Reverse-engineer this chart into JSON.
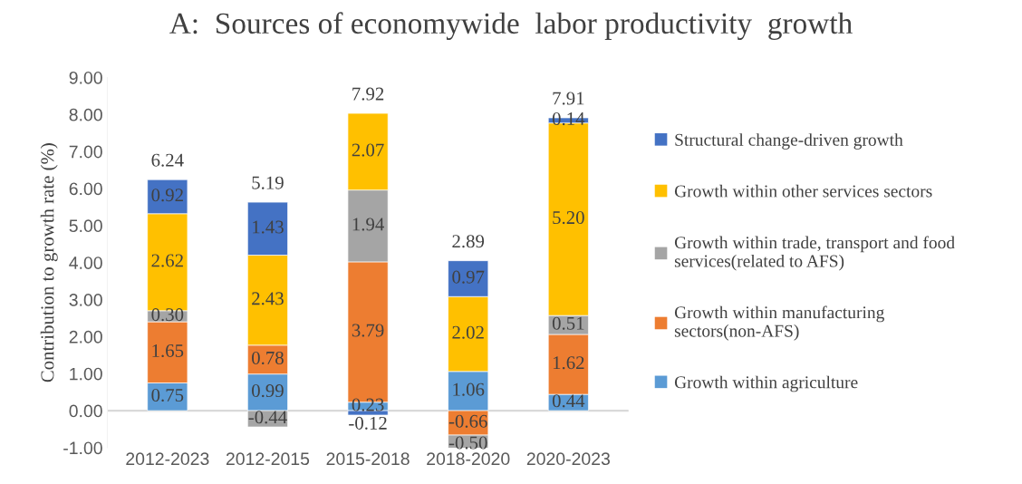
{
  "chart_data": {
    "type": "bar",
    "stacked": true,
    "title": "A:  Sources of economywide  labor productivity  growth",
    "ylabel": "Contribution to growth rate (%)",
    "categories": [
      "2012-2023",
      "2012-2015",
      "2015-2018",
      "2018-2020",
      "2020-2023"
    ],
    "series": [
      {
        "name": "Growth within agriculture",
        "color": "#5b9bd5",
        "values": [
          0.75,
          0.99,
          0.23,
          1.06,
          0.44
        ],
        "value_labels": [
          "0.75",
          "0.99",
          "0.23",
          "1.06",
          "0.44"
        ]
      },
      {
        "name": "Growth within manufacturing\nsectors(non-AFS)",
        "color": "#ed7d31",
        "values": [
          1.65,
          0.78,
          3.79,
          -0.66,
          1.62
        ],
        "value_labels": [
          "1.65",
          "0.78",
          "3.79",
          "-0.66",
          "1.62"
        ]
      },
      {
        "name": "Growth within trade, transport and food\nservices(related to AFS)",
        "color": "#a5a5a5",
        "values": [
          0.3,
          -0.44,
          1.94,
          -0.5,
          0.51
        ],
        "value_labels": [
          "0.30",
          "-0.44",
          "1.94",
          "-0.50",
          "0.51"
        ]
      },
      {
        "name": "Growth within other services sectors",
        "color": "#ffc000",
        "values": [
          2.62,
          2.43,
          2.07,
          2.02,
          5.2
        ],
        "value_labels": [
          "2.62",
          "2.43",
          "2.07",
          "2.02",
          "5.20"
        ]
      },
      {
        "name": "Structural change-driven growth",
        "color": "#4472c4",
        "values": [
          0.92,
          1.43,
          -0.12,
          0.97,
          0.14
        ],
        "value_labels": [
          "0.92",
          "1.43",
          "-0.12",
          "0.97",
          "0.14"
        ]
      }
    ],
    "totals": [
      "6.24",
      "5.19",
      "7.92",
      "2.89",
      "7.91"
    ],
    "legend": "right",
    "grid": false,
    "ylim": [
      -1,
      9
    ],
    "yticks": [
      {
        "value": -1,
        "label": "-1.00"
      },
      {
        "value": 0,
        "label": "0.00"
      },
      {
        "value": 1,
        "label": "1.00"
      },
      {
        "value": 2,
        "label": "2.00"
      },
      {
        "value": 3,
        "label": "3.00"
      },
      {
        "value": 4,
        "label": "4.00"
      },
      {
        "value": 5,
        "label": "5.00"
      },
      {
        "value": 6,
        "label": "6.00"
      },
      {
        "value": 7,
        "label": "7.00"
      },
      {
        "value": 8,
        "label": "8.00"
      },
      {
        "value": 9,
        "label": "9.00"
      }
    ]
  }
}
